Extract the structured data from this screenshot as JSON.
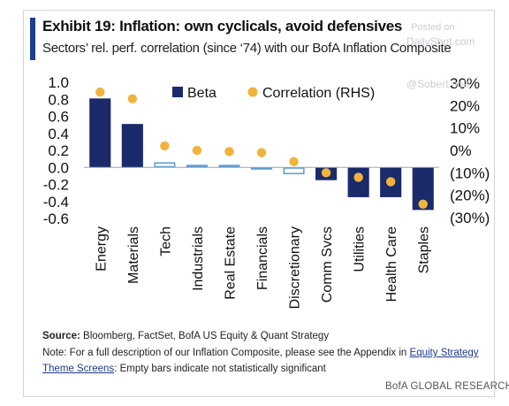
{
  "header": {
    "title": "Exhibit 19: Inflation: own cyclicals, avoid defensives",
    "subtitle": "Sectors’ rel. perf. correlation (since ‘74) with our BofA Inflation Composite"
  },
  "watermark": {
    "posted": "Posted on",
    "site": "DailyShot.com",
    "handle": "@SoberLook"
  },
  "colors": {
    "accent": "#1b3f8b",
    "beta": "#1b2a6b",
    "beta_empty_stroke": "#5b9bd5",
    "correlation": "#f0b43c"
  },
  "chart_data": {
    "type": "bar",
    "categories": [
      "Energy",
      "Materials",
      "Tech",
      "Industrials",
      "Real Estate",
      "Financials",
      "Discretionary",
      "Comm Svcs",
      "Utilities",
      "Health Care",
      "Staples"
    ],
    "series": [
      {
        "name": "Beta",
        "axis": "left",
        "values": [
          0.81,
          0.51,
          0.06,
          0.03,
          0.03,
          -0.02,
          -0.08,
          -0.15,
          -0.35,
          -0.35,
          -0.5
        ],
        "significant": [
          true,
          true,
          false,
          false,
          false,
          false,
          false,
          true,
          true,
          true,
          true
        ]
      },
      {
        "name": "Correlation (RHS)",
        "axis": "right",
        "values": [
          26,
          23,
          2,
          0,
          -0.5,
          -1,
          -5,
          -10,
          -12,
          -14,
          -24
        ]
      }
    ],
    "left_axis": {
      "ylim": [
        -0.6,
        1.0
      ],
      "ticks": [
        1.0,
        0.8,
        0.6,
        0.4,
        0.2,
        0.0,
        -0.2,
        -0.4,
        -0.6
      ],
      "tick_labels": [
        "1.0",
        "0.8",
        "0.6",
        "0.4",
        "0.2",
        "0.0",
        "-0.2",
        "-0.4",
        "-0.6"
      ]
    },
    "right_axis": {
      "ylim": [
        -30,
        30
      ],
      "ticks": [
        30,
        20,
        10,
        0,
        -10,
        -20,
        -30
      ],
      "tick_labels": [
        "30%",
        "20%",
        "10%",
        "0%",
        "(10%)",
        "(20%)",
        "(30%)"
      ]
    },
    "legend_position": "top-center",
    "grid": false
  },
  "notes": {
    "source_label": "Source:",
    "source_text": " Bloomberg, FactSet, BofA US Equity & Quant Strategy",
    "note_line1": "Note: For a full description of our Inflation Composite, please see the Appendix in ",
    "link_part1": "Equity Strategy",
    "link_part2": "Theme Screens",
    "note_line2_rest": ": Empty bars indicate not statistically significant"
  },
  "footer": "BofA GLOBAL RESEARCH"
}
